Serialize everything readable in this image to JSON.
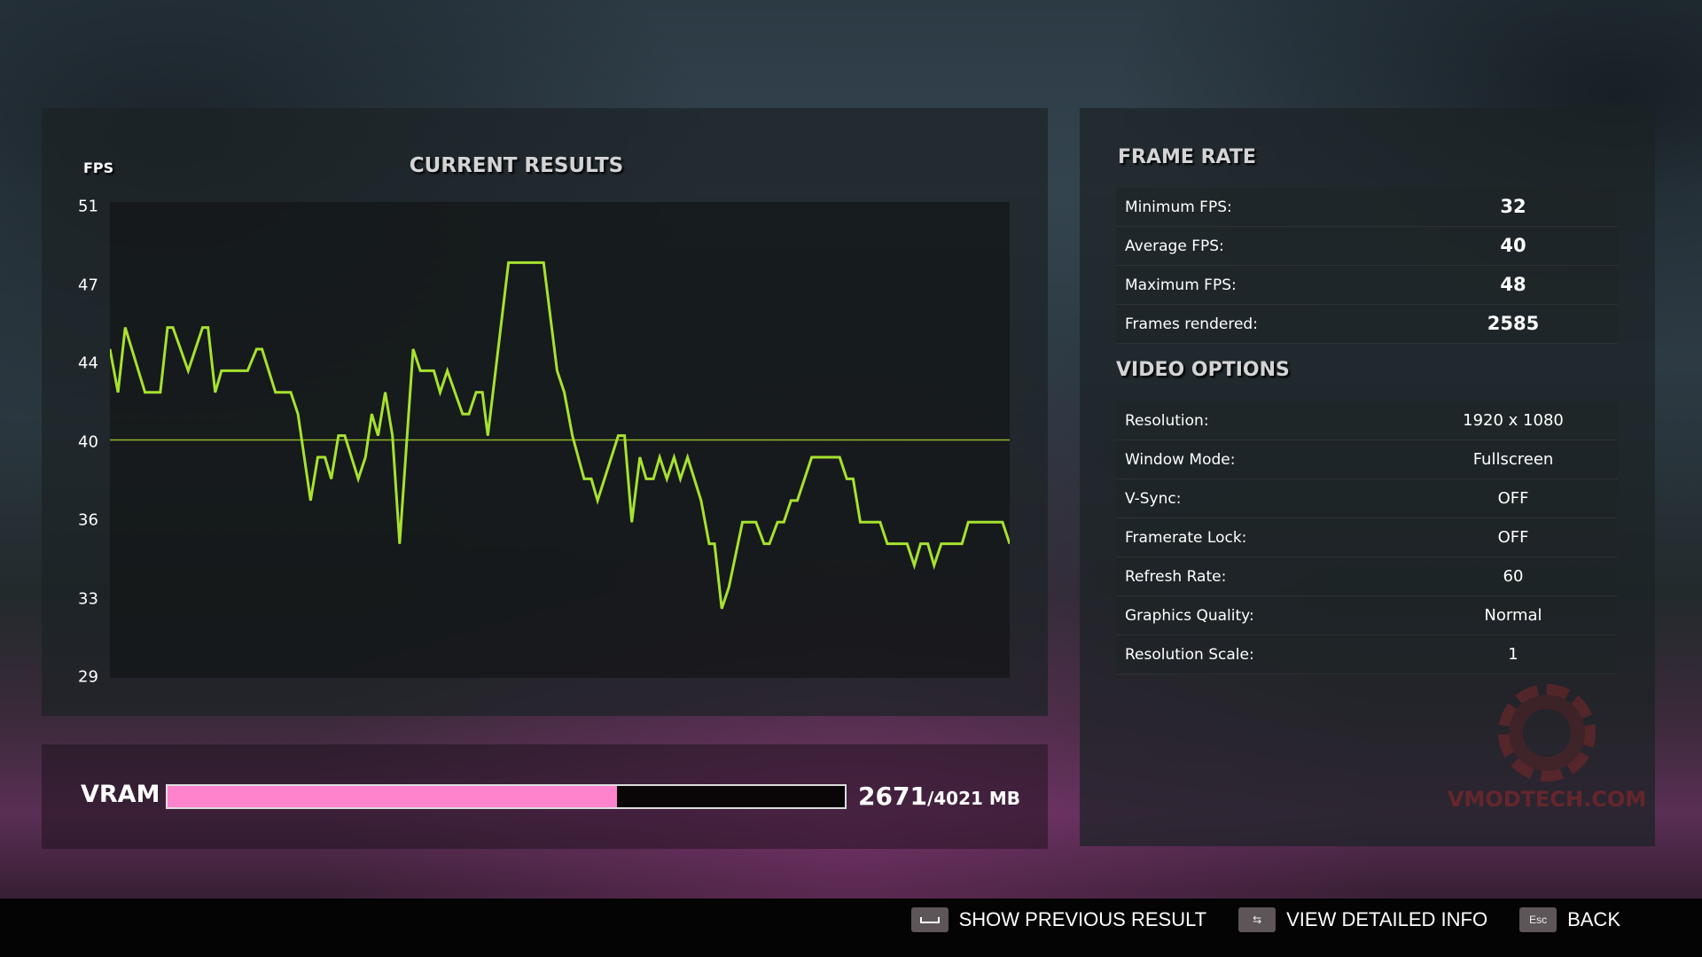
{
  "chart_data": {
    "type": "line",
    "title": "CURRENT RESULTS",
    "ylabel": "FPS",
    "xlabel": "",
    "ylim": [
      29,
      51
    ],
    "yticks": [
      "51",
      "47",
      "44",
      "40",
      "36",
      "33",
      "29"
    ],
    "average_line": 40,
    "line_color": "#a6e22e",
    "x": [
      0,
      0.9,
      1.7,
      3.9,
      5.6,
      6.4,
      7.0,
      8.7,
      10.3,
      10.9,
      11.7,
      12.4,
      15.3,
      16.3,
      16.9,
      18.4,
      20.1,
      20.9,
      22.3,
      23.1,
      23.9,
      24.6,
      25.4,
      26.1,
      27.6,
      28.4,
      29.1,
      29.8,
      30.6,
      31.4,
      32.2,
      33.7,
      34.5,
      36.0,
      36.7,
      37.5,
      39.2,
      39.9,
      40.7,
      41.4,
      42.0,
      44.3,
      48.2,
      49.7,
      50.5,
      51.4,
      52.7,
      53.5,
      54.2,
      56.5,
      57.2,
      58.0,
      58.9,
      59.6,
      60.4,
      61.1,
      61.9,
      62.7,
      63.4,
      64.2,
      65.7,
      66.6,
      67.2,
      68.0,
      68.8,
      70.3,
      71.8,
      72.7,
      73.3,
      74.2,
      74.9,
      75.7,
      76.4,
      78.0,
      81.1,
      81.9,
      82.6,
      83.4,
      85.6,
      86.4,
      88.6,
      89.4,
      90.1,
      90.9,
      91.6,
      92.4,
      94.7,
      95.4,
      99.2,
      100
    ],
    "values": [
      44,
      42,
      45,
      42,
      42,
      45,
      45,
      43,
      45,
      45,
      42,
      43,
      43,
      44,
      44,
      42,
      42,
      41,
      37,
      39,
      39,
      38,
      40,
      40,
      38,
      39,
      41,
      40,
      42,
      40,
      35,
      44,
      43,
      43,
      42,
      43,
      41,
      41,
      42,
      42,
      40,
      48,
      48,
      43,
      42,
      40,
      38,
      38,
      37,
      40,
      40,
      36,
      39,
      38,
      38,
      39,
      38,
      39,
      38,
      39,
      37,
      35,
      35,
      32,
      33,
      36,
      36,
      35,
      35,
      36,
      36,
      37,
      37,
      39,
      39,
      38,
      38,
      36,
      36,
      35,
      35,
      34,
      35,
      35,
      34,
      35,
      35,
      36,
      36,
      35
    ]
  },
  "vram": {
    "label": "VRAM",
    "used": "2671",
    "total": "/4021 MB",
    "fraction": 0.664,
    "color": "#ff82cd"
  },
  "frame_rate": {
    "title": "FRAME RATE",
    "rows": [
      {
        "label": "Minimum FPS:",
        "value": "32"
      },
      {
        "label": "Average FPS:",
        "value": "40"
      },
      {
        "label": "Maximum FPS:",
        "value": "48"
      },
      {
        "label": "Frames rendered:",
        "value": "2585"
      }
    ]
  },
  "video_options": {
    "title": "VIDEO OPTIONS",
    "rows": [
      {
        "label": "Resolution:",
        "value": "1920 x 1080"
      },
      {
        "label": "Window Mode:",
        "value": "Fullscreen"
      },
      {
        "label": "V-Sync:",
        "value": "OFF"
      },
      {
        "label": "Framerate Lock:",
        "value": "OFF"
      },
      {
        "label": "Refresh Rate:",
        "value": "60"
      },
      {
        "label": "Graphics Quality:",
        "value": "Normal"
      },
      {
        "label": "Resolution Scale:",
        "value": "1"
      }
    ]
  },
  "watermark": "VMODTECH.COM",
  "footer": {
    "show_previous": {
      "key": "space-key-icon",
      "label": "SHOW PREVIOUS RESULT"
    },
    "view_detailed": {
      "key": "tab-key-icon",
      "label": "VIEW DETAILED INFO"
    },
    "back": {
      "key": "Esc",
      "label": "BACK"
    }
  }
}
